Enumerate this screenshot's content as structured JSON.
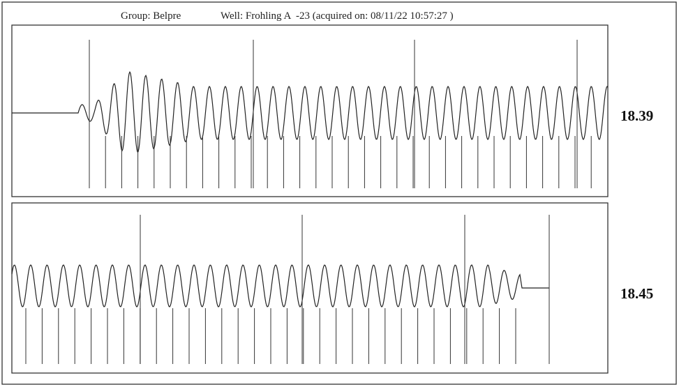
{
  "header": {
    "group": "Group: Belpre",
    "well": "Well: Frohling A  -23 (acquired on: 08/11/22 10:57:27 )"
  },
  "panels": [
    {
      "value": "18.39"
    },
    {
      "value": "18.45"
    }
  ]
}
